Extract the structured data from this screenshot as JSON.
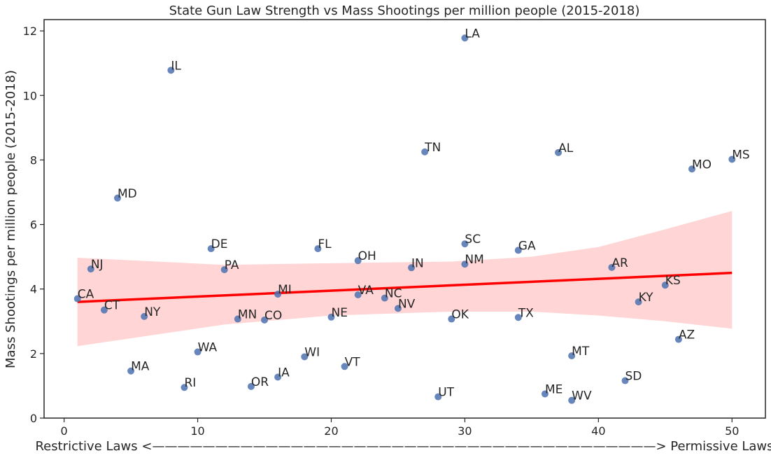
{
  "chart_data": {
    "type": "scatter",
    "title": "State Gun Law Strength vs Mass Shootings per million people (2015-2018)",
    "xlabel": "Restrictive Laws <————————————————————————————————————————> Permissive Laws",
    "ylabel": "Mass Shootings per million people (2015-2018)",
    "xlim": [
      -1.5,
      52.5
    ],
    "ylim": [
      0,
      12.35
    ],
    "xticks": [
      0,
      10,
      20,
      30,
      40,
      50
    ],
    "yticks": [
      0,
      2,
      4,
      6,
      8,
      10,
      12
    ],
    "grid": false,
    "colors": {
      "point": "#4c72b0",
      "fit_line": "#ff0000",
      "ci_band": "#ffd5d5",
      "axis": "#262626"
    },
    "points": [
      {
        "label": "CA",
        "x": 1,
        "y": 3.7
      },
      {
        "label": "NJ",
        "x": 2,
        "y": 4.62
      },
      {
        "label": "CT",
        "x": 3,
        "y": 3.35
      },
      {
        "label": "MD",
        "x": 4,
        "y": 6.82
      },
      {
        "label": "MA",
        "x": 5,
        "y": 1.46
      },
      {
        "label": "NY",
        "x": 6,
        "y": 3.15
      },
      {
        "label": "IL",
        "x": 8,
        "y": 10.78
      },
      {
        "label": "RI",
        "x": 9,
        "y": 0.95
      },
      {
        "label": "WA",
        "x": 10,
        "y": 2.05
      },
      {
        "label": "DE",
        "x": 11,
        "y": 5.25
      },
      {
        "label": "PA",
        "x": 12,
        "y": 4.6
      },
      {
        "label": "MN",
        "x": 13,
        "y": 3.07
      },
      {
        "label": "OR",
        "x": 14,
        "y": 0.98
      },
      {
        "label": "CO",
        "x": 15,
        "y": 3.04
      },
      {
        "label": "MI",
        "x": 16,
        "y": 3.84
      },
      {
        "label": "IA",
        "x": 16,
        "y": 1.27
      },
      {
        "label": "WI",
        "x": 18,
        "y": 1.9
      },
      {
        "label": "FL",
        "x": 19,
        "y": 5.25
      },
      {
        "label": "NE",
        "x": 20,
        "y": 3.13
      },
      {
        "label": "VT",
        "x": 21,
        "y": 1.6
      },
      {
        "label": "OH",
        "x": 22,
        "y": 4.88
      },
      {
        "label": "VA",
        "x": 22,
        "y": 3.82
      },
      {
        "label": "NC",
        "x": 24,
        "y": 3.72
      },
      {
        "label": "NV",
        "x": 25,
        "y": 3.4
      },
      {
        "label": "IN",
        "x": 26,
        "y": 4.66
      },
      {
        "label": "TN",
        "x": 27,
        "y": 8.25
      },
      {
        "label": "UT",
        "x": 28,
        "y": 0.66
      },
      {
        "label": "OK",
        "x": 29,
        "y": 3.07
      },
      {
        "label": "LA",
        "x": 30,
        "y": 11.78
      },
      {
        "label": "SC",
        "x": 30,
        "y": 5.4
      },
      {
        "label": "NM",
        "x": 30,
        "y": 4.77
      },
      {
        "label": "TX",
        "x": 34,
        "y": 3.12
      },
      {
        "label": "GA",
        "x": 34,
        "y": 5.2
      },
      {
        "label": "ME",
        "x": 36,
        "y": 0.75
      },
      {
        "label": "AL",
        "x": 37,
        "y": 8.23
      },
      {
        "label": "MT",
        "x": 38,
        "y": 1.93
      },
      {
        "label": "WV",
        "x": 38,
        "y": 0.55
      },
      {
        "label": "AR",
        "x": 41,
        "y": 4.67
      },
      {
        "label": "SD",
        "x": 42,
        "y": 1.16
      },
      {
        "label": "KY",
        "x": 43,
        "y": 3.6
      },
      {
        "label": "KS",
        "x": 45,
        "y": 4.12
      },
      {
        "label": "AZ",
        "x": 46,
        "y": 2.44
      },
      {
        "label": "MO",
        "x": 47,
        "y": 7.72
      },
      {
        "label": "MS",
        "x": 50,
        "y": 8.02
      }
    ],
    "regression": {
      "x": [
        1,
        50
      ],
      "y": [
        3.6,
        4.5
      ]
    },
    "confidence_band": {
      "x": [
        1,
        12,
        20,
        29,
        35,
        40,
        45,
        50
      ],
      "upper": [
        4.97,
        4.75,
        4.8,
        4.85,
        5.0,
        5.3,
        5.85,
        6.42
      ],
      "lower": [
        2.23,
        2.9,
        3.18,
        3.3,
        3.3,
        3.18,
        3.0,
        2.77
      ]
    }
  }
}
